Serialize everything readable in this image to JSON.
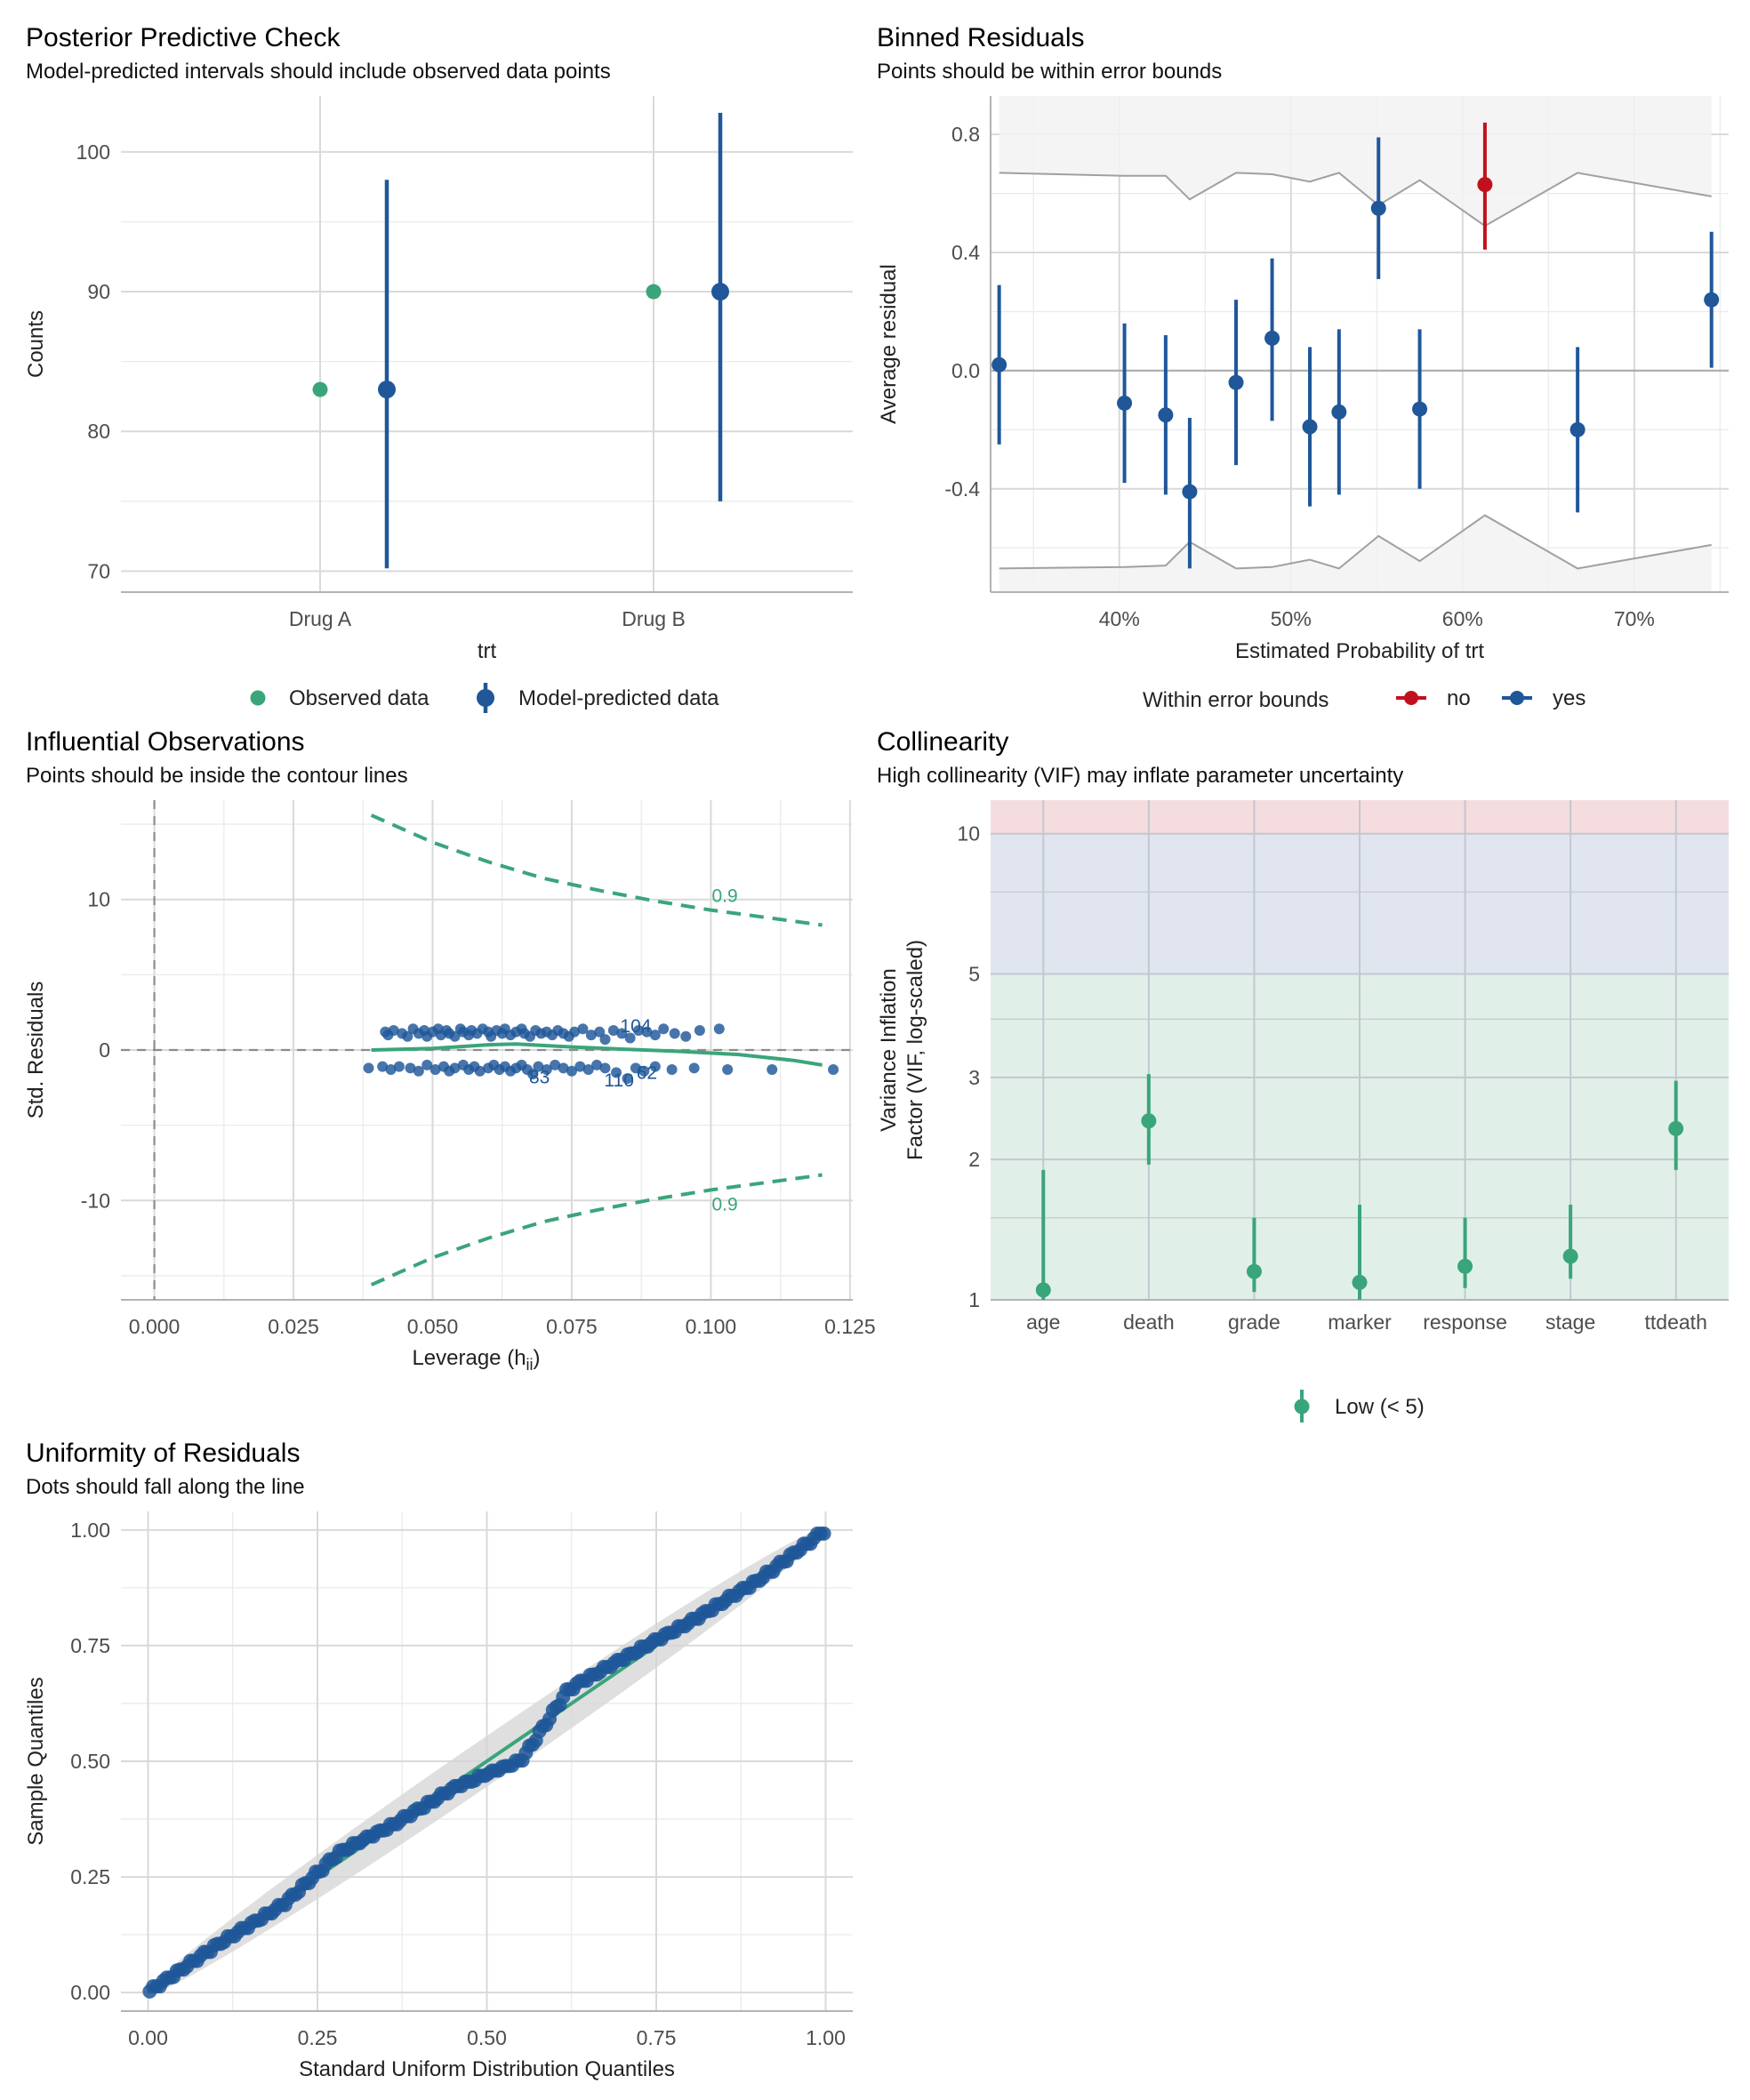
{
  "colors": {
    "blue": "#1f5799",
    "green": "#3aa57a",
    "red": "#c2111e",
    "band_grey": "#f2f2f2",
    "line_grey": "#a0a0a0",
    "zone_low": "#e0f0e8",
    "zone_moderate": "#e0e5ef",
    "zone_high": "#f4dcdf"
  },
  "chart_data": [
    {
      "type": "scatter",
      "id": "ppc",
      "title": "Posterior Predictive Check",
      "subtitle": "Model-predicted intervals should include observed data points",
      "xlabel": "trt",
      "ylabel": "Counts",
      "categories": [
        "Drug A",
        "Drug B"
      ],
      "ylim": [
        68.5,
        104
      ],
      "yticks": [
        "70",
        "80",
        "90",
        "100"
      ],
      "yticks_values": [
        70,
        80,
        90,
        100
      ],
      "observed": [
        83,
        90
      ],
      "predicted": [
        {
          "category": "Drug A",
          "value": 83,
          "low": 70.2,
          "high": 98
        },
        {
          "category": "Drug B",
          "value": 90,
          "low": 75,
          "high": 102.8
        }
      ],
      "legend": [
        "Observed data",
        "Model-predicted data"
      ],
      "grid": true
    },
    {
      "type": "scatter",
      "id": "binned",
      "title": "Binned Residuals",
      "subtitle": "Points should be within error bounds",
      "xlabel": "Estimated Probability of trt",
      "ylabel": "Average residual",
      "xlim": [
        0.325,
        0.755
      ],
      "ylim": [
        -0.75,
        0.93
      ],
      "xticks": [
        "40%",
        "50%",
        "60%",
        "70%"
      ],
      "xticks_values": [
        0.4,
        0.5,
        0.6,
        0.7
      ],
      "yticks": [
        "-0.4",
        "0.0",
        "0.4",
        "0.8"
      ],
      "yticks_values": [
        -0.4,
        0.0,
        0.4,
        0.8
      ],
      "points": [
        {
          "x": 0.33,
          "y": 0.02,
          "low": -0.25,
          "high": 0.29,
          "within": "yes"
        },
        {
          "x": 0.403,
          "y": -0.11,
          "low": -0.38,
          "high": 0.16,
          "within": "yes"
        },
        {
          "x": 0.427,
          "y": -0.15,
          "low": -0.42,
          "high": 0.12,
          "within": "yes"
        },
        {
          "x": 0.441,
          "y": -0.41,
          "low": -0.67,
          "high": -0.16,
          "within": "yes"
        },
        {
          "x": 0.468,
          "y": -0.04,
          "low": -0.32,
          "high": 0.24,
          "within": "yes"
        },
        {
          "x": 0.489,
          "y": 0.11,
          "low": -0.17,
          "high": 0.38,
          "within": "yes"
        },
        {
          "x": 0.511,
          "y": -0.19,
          "low": -0.46,
          "high": 0.08,
          "within": "yes"
        },
        {
          "x": 0.528,
          "y": -0.14,
          "low": -0.42,
          "high": 0.14,
          "within": "yes"
        },
        {
          "x": 0.551,
          "y": 0.55,
          "low": 0.31,
          "high": 0.79,
          "within": "yes"
        },
        {
          "x": 0.575,
          "y": -0.13,
          "low": -0.4,
          "high": 0.14,
          "within": "yes"
        },
        {
          "x": 0.613,
          "y": 0.63,
          "low": 0.41,
          "high": 0.84,
          "within": "no"
        },
        {
          "x": 0.667,
          "y": -0.2,
          "low": -0.48,
          "high": 0.08,
          "within": "yes"
        },
        {
          "x": 0.745,
          "y": 0.24,
          "low": 0.01,
          "high": 0.47,
          "within": "yes"
        }
      ],
      "bounds_x": [
        0.33,
        0.403,
        0.427,
        0.441,
        0.468,
        0.489,
        0.511,
        0.528,
        0.551,
        0.575,
        0.613,
        0.667,
        0.745
      ],
      "bounds_upper": [
        0.67,
        0.66,
        0.66,
        0.58,
        0.67,
        0.665,
        0.64,
        0.67,
        0.56,
        0.645,
        0.49,
        0.67,
        0.59
      ],
      "bounds_lower": [
        -0.67,
        -0.665,
        -0.66,
        -0.58,
        -0.67,
        -0.665,
        -0.64,
        -0.67,
        -0.56,
        -0.645,
        -0.49,
        -0.67,
        -0.59
      ],
      "legend_title": "Within error bounds",
      "legend": [
        "no",
        "yes"
      ],
      "grid": true
    },
    {
      "type": "scatter",
      "id": "influence",
      "title": "Influential Observations",
      "subtitle": "Points should be inside the contour lines",
      "xlabel": "Leverage (h",
      "xlabel_sub": "ii",
      "xlabel_end": ")",
      "ylabel": "Std. Residuals",
      "xlim": [
        -0.006,
        0.1255
      ],
      "ylim": [
        -16.6,
        16.6
      ],
      "xticks": [
        "0.000",
        "0.025",
        "0.050",
        "0.075",
        "0.100",
        "0.125"
      ],
      "xticks_values": [
        0,
        0.025,
        0.05,
        0.075,
        0.1,
        0.125
      ],
      "yticks": [
        "-10",
        "0",
        "10"
      ],
      "yticks_values": [
        -10,
        0,
        10
      ],
      "contour_label": "0.9",
      "contour_label_x": 0.1025,
      "contour_label_y": [
        10.3,
        -10.2
      ],
      "contour_x": [
        0.039,
        0.05,
        0.06,
        0.07,
        0.08,
        0.09,
        0.1,
        0.11,
        0.12
      ],
      "contour_y": [
        15.6,
        13.8,
        12.5,
        11.4,
        10.6,
        9.9,
        9.3,
        8.8,
        8.3
      ],
      "loess_x": [
        0.039,
        0.05,
        0.06,
        0.065,
        0.075,
        0.085,
        0.095,
        0.105,
        0.115,
        0.12
      ],
      "loess_y": [
        0.0,
        0.1,
        0.35,
        0.4,
        0.2,
        0.05,
        -0.1,
        -0.3,
        -0.7,
        -1.0
      ],
      "point_labels": [
        {
          "text": "104",
          "x": 0.0865,
          "y": 1.6
        },
        {
          "text": "83",
          "x": 0.0692,
          "y": -1.8
        },
        {
          "text": "110",
          "x": 0.0835,
          "y": -2.0
        },
        {
          "text": "62",
          "x": 0.0885,
          "y": -1.5
        }
      ],
      "points_upper": [
        [
          0.0415,
          1.2
        ],
        [
          0.042,
          1.0
        ],
        [
          0.043,
          1.3
        ],
        [
          0.0445,
          1.1
        ],
        [
          0.0455,
          0.9
        ],
        [
          0.0465,
          1.4
        ],
        [
          0.0475,
          1.1
        ],
        [
          0.0485,
          1.3
        ],
        [
          0.049,
          0.9
        ],
        [
          0.05,
          1.2
        ],
        [
          0.051,
          1.4
        ],
        [
          0.0515,
          1.0
        ],
        [
          0.0525,
          1.3
        ],
        [
          0.053,
          1.1
        ],
        [
          0.054,
          0.9
        ],
        [
          0.055,
          1.4
        ],
        [
          0.0555,
          1.2
        ],
        [
          0.0565,
          1.0
        ],
        [
          0.057,
          1.3
        ],
        [
          0.058,
          1.1
        ],
        [
          0.059,
          1.4
        ],
        [
          0.06,
          1.2
        ],
        [
          0.0605,
          0.9
        ],
        [
          0.0615,
          1.3
        ],
        [
          0.0625,
          1.1
        ],
        [
          0.063,
          1.4
        ],
        [
          0.064,
          1.0
        ],
        [
          0.065,
          1.2
        ],
        [
          0.066,
          1.4
        ],
        [
          0.0665,
          1.1
        ],
        [
          0.0675,
          0.9
        ],
        [
          0.0685,
          1.3
        ],
        [
          0.0695,
          1.1
        ],
        [
          0.0705,
          1.2
        ],
        [
          0.0715,
          1.0
        ],
        [
          0.0725,
          1.3
        ],
        [
          0.0735,
          1.1
        ],
        [
          0.0745,
          0.9
        ],
        [
          0.0755,
          1.2
        ],
        [
          0.077,
          1.4
        ],
        [
          0.0785,
          1.0
        ],
        [
          0.08,
          1.2
        ],
        [
          0.081,
          0.7
        ],
        [
          0.0825,
          1.3
        ],
        [
          0.084,
          1.1
        ],
        [
          0.0855,
          0.8
        ],
        [
          0.087,
          1.3
        ],
        [
          0.0885,
          1.2
        ],
        [
          0.09,
          1.0
        ],
        [
          0.0915,
          1.4
        ],
        [
          0.0935,
          1.1
        ],
        [
          0.0955,
          0.9
        ],
        [
          0.098,
          1.3
        ],
        [
          0.1015,
          1.4
        ]
      ],
      "points_lower": [
        [
          0.0385,
          -1.2
        ],
        [
          0.041,
          -1.1
        ],
        [
          0.0425,
          -1.3
        ],
        [
          0.044,
          -1.1
        ],
        [
          0.046,
          -1.2
        ],
        [
          0.0475,
          -1.4
        ],
        [
          0.049,
          -1.0
        ],
        [
          0.0505,
          -1.3
        ],
        [
          0.052,
          -1.1
        ],
        [
          0.053,
          -1.4
        ],
        [
          0.054,
          -1.2
        ],
        [
          0.0555,
          -1.0
        ],
        [
          0.0565,
          -1.3
        ],
        [
          0.0575,
          -1.1
        ],
        [
          0.0585,
          -1.4
        ],
        [
          0.06,
          -1.2
        ],
        [
          0.061,
          -1.0
        ],
        [
          0.062,
          -1.3
        ],
        [
          0.063,
          -1.1
        ],
        [
          0.064,
          -1.4
        ],
        [
          0.065,
          -1.2
        ],
        [
          0.066,
          -1.0
        ],
        [
          0.067,
          -1.3
        ],
        [
          0.068,
          -1.6
        ],
        [
          0.069,
          -1.1
        ],
        [
          0.0705,
          -1.3
        ],
        [
          0.072,
          -1.0
        ],
        [
          0.0735,
          -1.2
        ],
        [
          0.075,
          -1.4
        ],
        [
          0.0765,
          -1.1
        ],
        [
          0.078,
          -1.3
        ],
        [
          0.0795,
          -1.0
        ],
        [
          0.081,
          -1.2
        ],
        [
          0.083,
          -1.5
        ],
        [
          0.085,
          -1.9
        ],
        [
          0.0865,
          -1.2
        ],
        [
          0.088,
          -1.4
        ],
        [
          0.09,
          -1.1
        ],
        [
          0.093,
          -1.3
        ],
        [
          0.097,
          -1.2
        ],
        [
          0.103,
          -1.3
        ],
        [
          0.111,
          -1.3
        ],
        [
          0.122,
          -1.3
        ]
      ],
      "grid": true
    },
    {
      "type": "scatter",
      "id": "collinearity",
      "title": "Collinearity",
      "subtitle": "High collinearity (VIF) may inflate parameter uncertainty",
      "ylabel": "Variance Inflation",
      "ylabel2": "Factor (VIF, log-scaled)",
      "log_y": true,
      "ylim": [
        1,
        11.8
      ],
      "yticks": [
        "1",
        "2",
        "3",
        "5",
        "10"
      ],
      "yticks_values": [
        1,
        2,
        3,
        5,
        10
      ],
      "categories": [
        "age",
        "death",
        "grade",
        "marker",
        "response",
        "stage",
        "ttdeath"
      ],
      "values": [
        1.05,
        2.42,
        1.15,
        1.09,
        1.18,
        1.24,
        2.33
      ],
      "low": [
        1.0,
        1.95,
        1.04,
        1.0,
        1.06,
        1.11,
        1.9
      ],
      "high": [
        1.9,
        3.05,
        1.5,
        1.6,
        1.5,
        1.6,
        2.95
      ],
      "zones": [
        {
          "name": "low",
          "from": 1,
          "to": 5
        },
        {
          "name": "moderate",
          "from": 5,
          "to": 10
        },
        {
          "name": "high",
          "from": 10,
          "to": 11.8
        }
      ],
      "legend": [
        "Low (< 5)"
      ],
      "grid": true
    },
    {
      "type": "scatter",
      "id": "uniformity",
      "title": "Uniformity of Residuals",
      "subtitle": "Dots should fall along the line",
      "xlabel": "Standard Uniform Distribution Quantiles",
      "ylabel": "Sample Quantiles",
      "xlim": [
        -0.04,
        1.04
      ],
      "ylim": [
        -0.04,
        1.04
      ],
      "xticks": [
        "0.00",
        "0.25",
        "0.50",
        "0.75",
        "1.00"
      ],
      "xticks_values": [
        0,
        0.25,
        0.5,
        0.75,
        1
      ],
      "yticks": [
        "0.00",
        "0.25",
        "0.50",
        "0.75",
        "1.00"
      ],
      "yticks_values": [
        0,
        0.25,
        0.5,
        0.75,
        1
      ],
      "n_points": 200,
      "band_halfwidth_max": 0.055,
      "deviation_x": [
        0,
        0.1,
        0.2,
        0.28,
        0.36,
        0.45,
        0.55,
        0.62,
        0.7,
        0.8,
        0.9,
        1
      ],
      "deviation_y": [
        0,
        0.0,
        -0.01,
        0.02,
        0.0,
        -0.01,
        -0.05,
        0.035,
        0.02,
        0.0,
        -0.01,
        0
      ],
      "grid": true
    }
  ]
}
